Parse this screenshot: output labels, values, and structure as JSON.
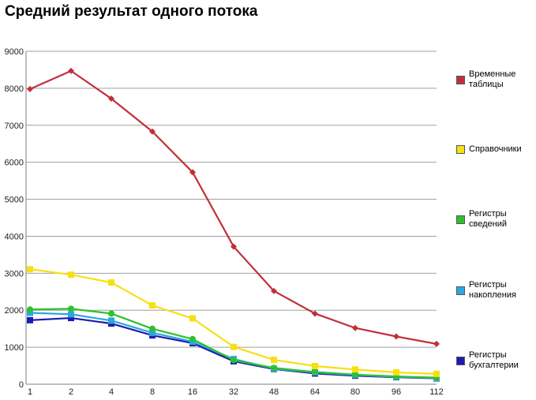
{
  "title": "Средний результат одного потока",
  "chart_data": {
    "type": "line",
    "title": "Средний результат одного потока",
    "xlabel": "",
    "ylabel": "",
    "categories": [
      "1",
      "2",
      "4",
      "8",
      "16",
      "32",
      "48",
      "64",
      "80",
      "96",
      "112"
    ],
    "ylim": [
      0,
      9000
    ],
    "yticks": [
      "0",
      "1000",
      "2000",
      "3000",
      "4000",
      "5000",
      "6000",
      "7000",
      "8000",
      "9000"
    ],
    "grid": "horizontal",
    "legend_position": "right",
    "series": [
      {
        "name": "Временные таблицы",
        "color": "#c0303a",
        "marker": "diamond",
        "values": [
          7980,
          8470,
          7720,
          6830,
          5730,
          3720,
          2520,
          1910,
          1520,
          1290,
          1090
        ]
      },
      {
        "name": "Справочники",
        "color": "#f7e012",
        "marker": "square",
        "values": [
          3110,
          2960,
          2750,
          2130,
          1780,
          1010,
          660,
          490,
          400,
          320,
          280
        ]
      },
      {
        "name": "Регистры сведений",
        "color": "#2ec12e",
        "marker": "circle",
        "values": [
          2020,
          2040,
          1910,
          1500,
          1220,
          650,
          440,
          330,
          260,
          210,
          180
        ]
      },
      {
        "name": "Регистры накопления",
        "color": "#2aa8df",
        "marker": "square",
        "values": [
          1930,
          1890,
          1720,
          1390,
          1150,
          680,
          420,
          320,
          250,
          200,
          170
        ]
      },
      {
        "name": "Регистры бухгалтерии",
        "color": "#1c1cb3",
        "marker": "square",
        "values": [
          1730,
          1790,
          1640,
          1320,
          1110,
          620,
          410,
          290,
          230,
          190,
          160
        ]
      }
    ]
  }
}
